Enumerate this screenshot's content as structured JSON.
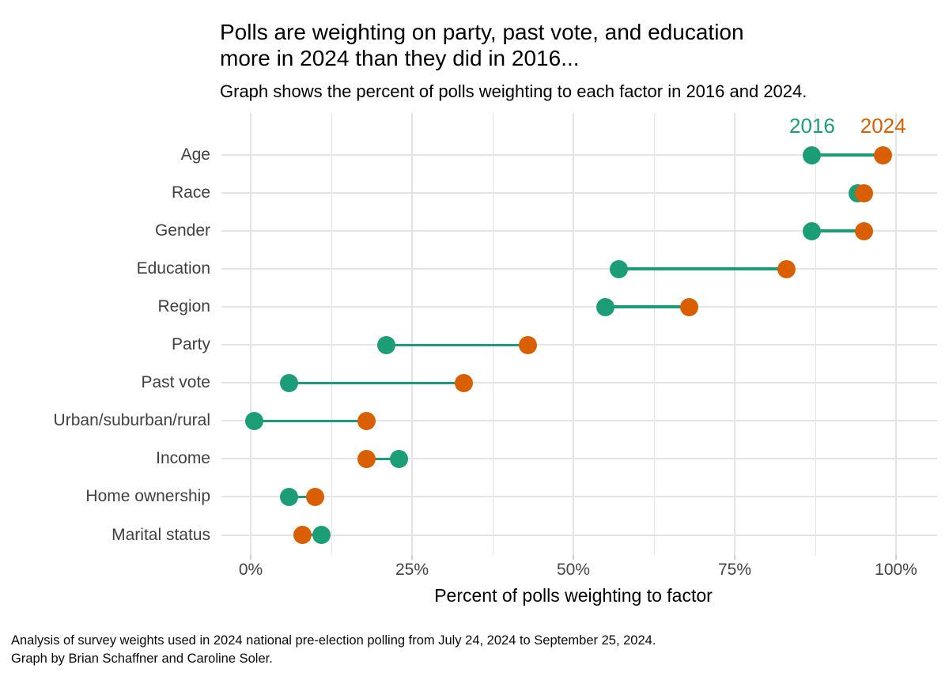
{
  "title": "Polls are weighting on party, past vote, and education\nmore in 2024 than they did in 2016...",
  "subtitle": "Graph shows the percent of polls weighting to each factor in 2016 and 2024.",
  "caption": "Analysis of survey weights used in 2024 national pre-election polling from July 24, 2024 to September 25, 2024.\nGraph by Brian Schaffner and Caroline Soler.",
  "chart_data": {
    "type": "scatter",
    "variant": "dumbbell",
    "title": "Polls are weighting on party, past vote, and education more in 2024 than they did in 2016...",
    "subtitle": "Graph shows the percent of polls weighting to each factor in 2016 and 2024.",
    "xlabel": "Percent of polls weighting to factor",
    "ylabel": "",
    "categories": [
      "Age",
      "Race",
      "Gender",
      "Education",
      "Region",
      "Party",
      "Past vote",
      "Urban/suburban/rural",
      "Income",
      "Home ownership",
      "Marital status"
    ],
    "series": [
      {
        "name": "2016",
        "color": "#1b9e77",
        "values": [
          87,
          94,
          87,
          57,
          55,
          21,
          6,
          0.5,
          23,
          6,
          11
        ]
      },
      {
        "name": "2024",
        "color": "#d95f02",
        "values": [
          98,
          95,
          95,
          83,
          68,
          43,
          33,
          18,
          18,
          10,
          8
        ]
      }
    ],
    "x_tick_labels": [
      "0%",
      "25%",
      "50%",
      "75%",
      "100%"
    ],
    "x_tick_values": [
      0,
      25,
      50,
      75,
      100
    ],
    "xlim": [
      -4.5,
      106.5
    ],
    "grid": true,
    "minor_grid_step_pct": 12.5,
    "gridline_color": "#e4e4e4",
    "connector_color": "#1b9e77",
    "legend_position": "inside-top-right, labels above first-row dots",
    "legend": [
      "2016",
      "2024"
    ]
  }
}
